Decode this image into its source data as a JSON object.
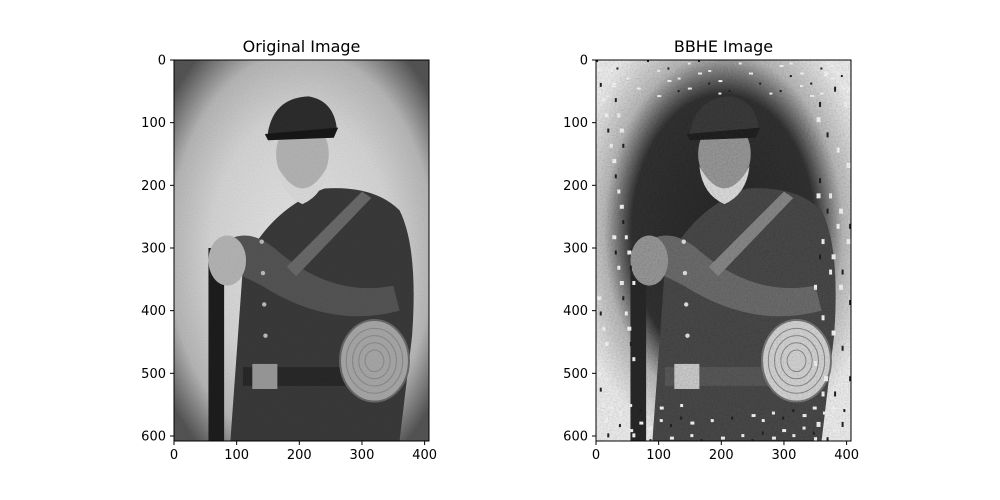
{
  "figure": {
    "background": "#ffffff"
  },
  "chart_data": [
    {
      "type": "image",
      "title": "Original Image",
      "image_description": "grayscale portrait of a bearded man in a Civil War style uniform with a kepi cap, holding a rifle, with a canteen at his hip; vignette-style aged border",
      "image_width": 407,
      "image_height": 608,
      "xlim": [
        0,
        407
      ],
      "ylim": [
        608,
        0
      ],
      "xticks": [
        0,
        100,
        200,
        300,
        400
      ],
      "yticks": [
        0,
        100,
        200,
        300,
        400,
        500,
        600
      ],
      "tone": "original",
      "colormap": "gray"
    },
    {
      "type": "image",
      "title": "BBHE Image",
      "image_description": "same portrait after Brightness Preserving Bi-Histogram Equalization; stronger contrast, dark background patches and white noisy border",
      "image_width": 407,
      "image_height": 608,
      "xlim": [
        0,
        407
      ],
      "ylim": [
        608,
        0
      ],
      "xticks": [
        0,
        100,
        200,
        300,
        400
      ],
      "yticks": [
        0,
        100,
        200,
        300,
        400,
        500,
        600
      ],
      "tone": "equalized",
      "colormap": "gray"
    }
  ]
}
